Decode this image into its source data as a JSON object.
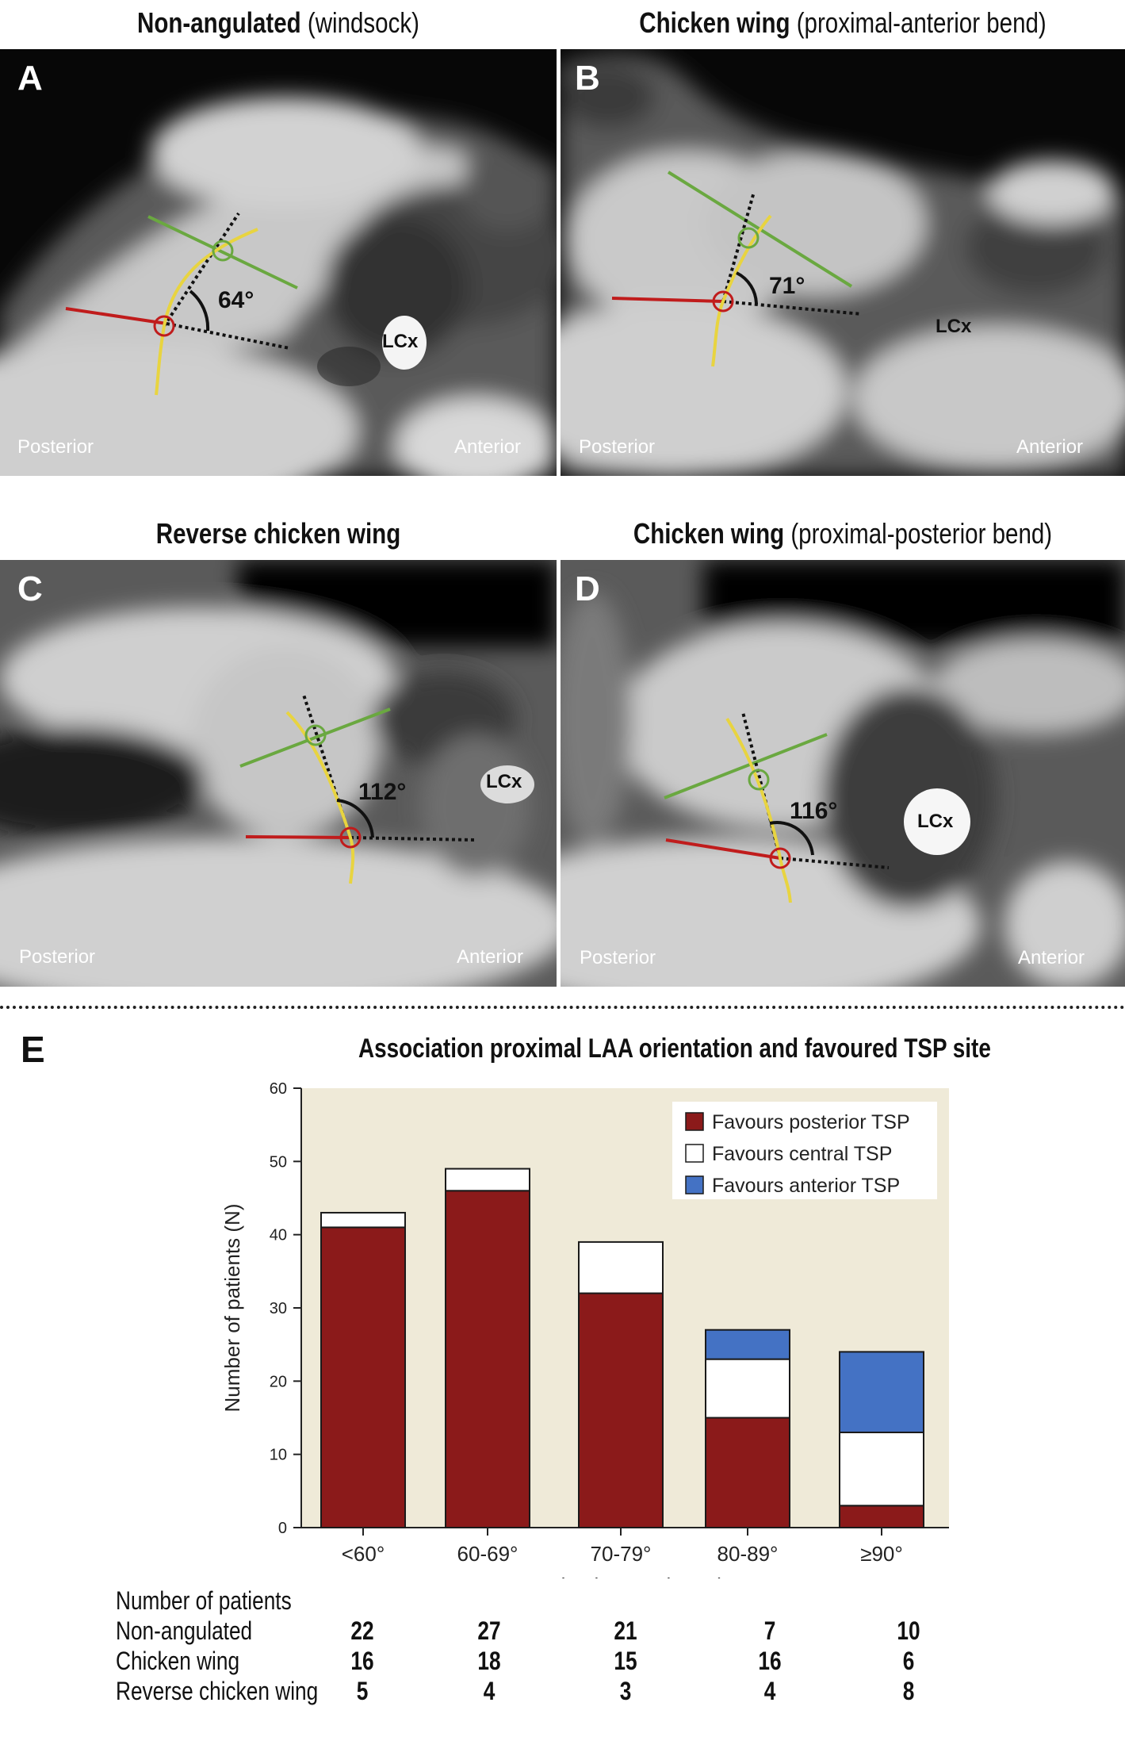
{
  "panels": [
    {
      "letter": "A",
      "title_bold": "Non-angulated",
      "title_rest": " (windsock)",
      "angle": "64°",
      "vessel": "LCx",
      "left_label": "Posterior",
      "right_label": "Anterior"
    },
    {
      "letter": "B",
      "title_bold": "Chicken wing",
      "title_rest": " (proximal-anterior bend)",
      "angle": "71°",
      "vessel": "LCx",
      "left_label": "Posterior",
      "right_label": "Anterior"
    },
    {
      "letter": "C",
      "title_bold": "Reverse chicken wing",
      "title_rest": "",
      "angle": "112°",
      "vessel": "LCx",
      "left_label": "Posterior",
      "right_label": "Anterior"
    },
    {
      "letter": "D",
      "title_bold": "Chicken wing",
      "title_rest": " (proximal-posterior bend)",
      "angle": "116°",
      "vessel": "LCx",
      "left_label": "Posterior",
      "right_label": "Anterior"
    }
  ],
  "panel_e_letter": "E",
  "chart_data": {
    "type": "bar",
    "stacked": true,
    "title": "Association proximal LAA orientation and favoured TSP site",
    "xlabel": "Proximal LAA orientation",
    "ylabel": "Number of patients (N)",
    "categories": [
      "<60°",
      "60-69°",
      "70-79°",
      "80-89°",
      "≥90°"
    ],
    "ylim": [
      0,
      60
    ],
    "yticks": [
      0,
      10,
      20,
      30,
      40,
      50,
      60
    ],
    "series": [
      {
        "name": "Favours posterior TSP",
        "color": "#8b1a1a",
        "values": [
          41,
          46,
          32,
          15,
          3
        ]
      },
      {
        "name": "Favours central TSP",
        "color": "#ffffff",
        "values": [
          2,
          3,
          7,
          8,
          10
        ]
      },
      {
        "name": "Favours anterior TSP",
        "color": "#4472c4",
        "values": [
          0,
          0,
          0,
          4,
          11
        ]
      }
    ],
    "legend_position": "top-right",
    "background_color": "#efead8"
  },
  "count_table": {
    "header": "Number of patients",
    "rows": [
      {
        "label": "Non-angulated",
        "values": [
          "22",
          "27",
          "21",
          "7",
          "10"
        ]
      },
      {
        "label": "Chicken wing",
        "values": [
          "16",
          "18",
          "15",
          "16",
          "6"
        ]
      },
      {
        "label": "Reverse chicken wing",
        "values": [
          "5",
          "4",
          "3",
          "4",
          "8"
        ]
      }
    ]
  }
}
